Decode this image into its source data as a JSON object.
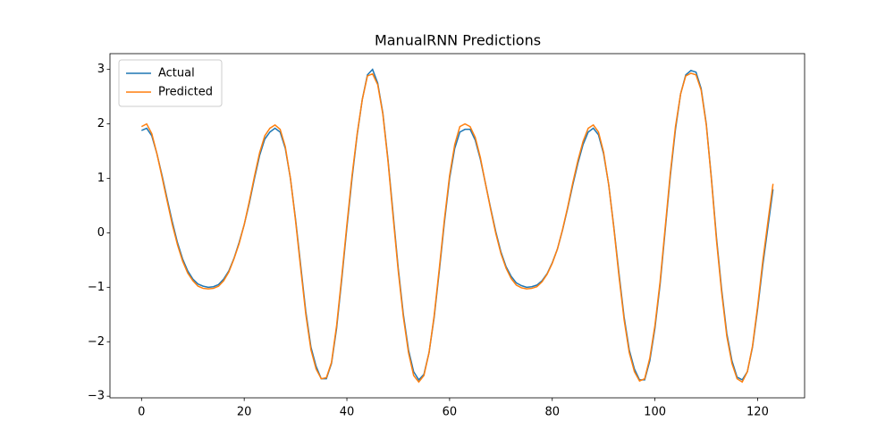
{
  "chart_data": {
    "type": "line",
    "title": "ManualRNN Predictions",
    "x": [
      0,
      1,
      2,
      3,
      4,
      5,
      6,
      7,
      8,
      9,
      10,
      11,
      12,
      13,
      14,
      15,
      16,
      17,
      18,
      19,
      20,
      21,
      22,
      23,
      24,
      25,
      26,
      27,
      28,
      29,
      30,
      31,
      32,
      33,
      34,
      35,
      36,
      37,
      38,
      39,
      40,
      41,
      42,
      43,
      44,
      45,
      46,
      47,
      48,
      49,
      50,
      51,
      52,
      53,
      54,
      55,
      56,
      57,
      58,
      59,
      60,
      61,
      62,
      63,
      64,
      65,
      66,
      67,
      68,
      69,
      70,
      71,
      72,
      73,
      74,
      75,
      76,
      77,
      78,
      79,
      80,
      81,
      82,
      83,
      84,
      85,
      86,
      87,
      88,
      89,
      90,
      91,
      92,
      93,
      94,
      95,
      96,
      97,
      98,
      99,
      100,
      101,
      102,
      103,
      104,
      105,
      106,
      107,
      108,
      109,
      110,
      111,
      112,
      113,
      114,
      115,
      116,
      117,
      118,
      119,
      120,
      121,
      122,
      123
    ],
    "series": [
      {
        "name": "Actual",
        "color": "#1f77b4",
        "values": [
          1.88,
          1.92,
          1.78,
          1.45,
          1.05,
          0.62,
          0.2,
          -0.18,
          -0.48,
          -0.7,
          -0.85,
          -0.94,
          -0.98,
          -1.0,
          -0.99,
          -0.95,
          -0.85,
          -0.7,
          -0.47,
          -0.18,
          0.15,
          0.55,
          1.0,
          1.42,
          1.72,
          1.85,
          1.92,
          1.85,
          1.55,
          1.0,
          0.25,
          -0.6,
          -1.45,
          -2.1,
          -2.45,
          -2.68,
          -2.68,
          -2.4,
          -1.75,
          -0.85,
          0.1,
          1.0,
          1.8,
          2.45,
          2.9,
          3.0,
          2.75,
          2.2,
          1.35,
          0.35,
          -0.65,
          -1.5,
          -2.15,
          -2.55,
          -2.7,
          -2.6,
          -2.2,
          -1.55,
          -0.7,
          0.2,
          1.0,
          1.55,
          1.85,
          1.9,
          1.9,
          1.7,
          1.35,
          0.9,
          0.45,
          0.02,
          -0.35,
          -0.62,
          -0.8,
          -0.92,
          -0.97,
          -1.0,
          -0.99,
          -0.96,
          -0.88,
          -0.75,
          -0.55,
          -0.3,
          0.05,
          0.45,
          0.88,
          1.28,
          1.62,
          1.85,
          1.92,
          1.8,
          1.45,
          0.88,
          0.1,
          -0.75,
          -1.55,
          -2.15,
          -2.5,
          -2.7,
          -2.7,
          -2.35,
          -1.75,
          -0.95,
          0.05,
          1.05,
          1.9,
          2.55,
          2.9,
          2.98,
          2.95,
          2.65,
          2.0,
          1.0,
          -0.1,
          -1.05,
          -1.85,
          -2.35,
          -2.65,
          -2.7,
          -2.55,
          -2.1,
          -1.4,
          -0.6,
          0.1,
          0.8
        ]
      },
      {
        "name": "Predicted",
        "color": "#ff7f0e",
        "values": [
          1.95,
          2.0,
          1.82,
          1.45,
          1.02,
          0.58,
          0.15,
          -0.22,
          -0.52,
          -0.74,
          -0.88,
          -0.98,
          -1.02,
          -1.03,
          -1.02,
          -0.98,
          -0.88,
          -0.72,
          -0.48,
          -0.2,
          0.15,
          0.58,
          1.04,
          1.47,
          1.78,
          1.92,
          1.98,
          1.9,
          1.58,
          1.0,
          0.22,
          -0.65,
          -1.5,
          -2.15,
          -2.5,
          -2.68,
          -2.66,
          -2.38,
          -1.7,
          -0.8,
          0.15,
          1.05,
          1.82,
          2.45,
          2.88,
          2.92,
          2.72,
          2.18,
          1.32,
          0.3,
          -0.7,
          -1.55,
          -2.2,
          -2.62,
          -2.74,
          -2.62,
          -2.2,
          -1.52,
          -0.65,
          0.25,
          1.05,
          1.62,
          1.95,
          2.0,
          1.95,
          1.75,
          1.38,
          0.9,
          0.43,
          -0.01,
          -0.38,
          -0.65,
          -0.84,
          -0.96,
          -1.01,
          -1.03,
          -1.02,
          -0.99,
          -0.9,
          -0.76,
          -0.56,
          -0.3,
          0.06,
          0.47,
          0.92,
          1.33,
          1.68,
          1.92,
          1.98,
          1.85,
          1.48,
          0.88,
          0.08,
          -0.8,
          -1.6,
          -2.2,
          -2.55,
          -2.72,
          -2.68,
          -2.3,
          -1.7,
          -0.9,
          0.1,
          1.1,
          1.95,
          2.55,
          2.88,
          2.93,
          2.9,
          2.62,
          1.98,
          0.98,
          -0.15,
          -1.1,
          -1.9,
          -2.4,
          -2.68,
          -2.74,
          -2.55,
          -2.08,
          -1.35,
          -0.52,
          0.2,
          0.9
        ]
      }
    ],
    "xlim": [
      -6.15,
      129.15
    ],
    "xticks": [
      0,
      20,
      40,
      60,
      80,
      100,
      120
    ],
    "ylim": [
      -3.03,
      3.29
    ],
    "yticks": [
      {
        "value": -3,
        "label": "−3"
      },
      {
        "value": -2,
        "label": "−2"
      },
      {
        "value": -1,
        "label": "−1"
      },
      0,
      1,
      2,
      3
    ],
    "legend": "upper left",
    "grid": false
  }
}
